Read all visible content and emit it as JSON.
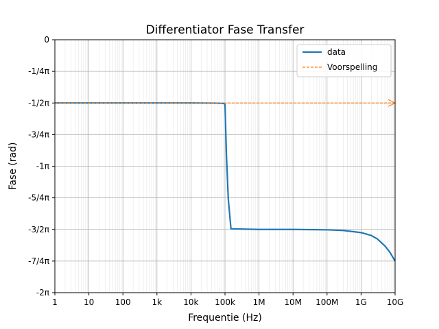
{
  "chart_data": {
    "type": "line",
    "title": "Differentiator Fase Transfer",
    "xlabel": "Frequentie (Hz)",
    "ylabel": "Fase (rad)",
    "x_scale": "log",
    "xlim": [
      1,
      10000000000
    ],
    "ylim_pi": [
      -2,
      0
    ],
    "grid": true,
    "legend_position": "top-right",
    "x_ticks": [
      {
        "value": 1,
        "label": "1"
      },
      {
        "value": 10,
        "label": "10"
      },
      {
        "value": 100,
        "label": "100"
      },
      {
        "value": 1000,
        "label": "1k"
      },
      {
        "value": 10000,
        "label": "10k"
      },
      {
        "value": 100000,
        "label": "100k"
      },
      {
        "value": 1000000,
        "label": "1M"
      },
      {
        "value": 10000000,
        "label": "10M"
      },
      {
        "value": 100000000,
        "label": "100M"
      },
      {
        "value": 1000000000,
        "label": "1G"
      },
      {
        "value": 10000000000,
        "label": "10G"
      }
    ],
    "y_ticks": [
      {
        "value_pi": 0,
        "label": "0"
      },
      {
        "value_pi": -0.25,
        "label": "-1/4π"
      },
      {
        "value_pi": -0.5,
        "label": "-1/2π"
      },
      {
        "value_pi": -0.75,
        "label": "-3/4π"
      },
      {
        "value_pi": -1,
        "label": "-1π"
      },
      {
        "value_pi": -1.25,
        "label": "-5/4π"
      },
      {
        "value_pi": -1.5,
        "label": "-3/2π"
      },
      {
        "value_pi": -1.75,
        "label": "-7/4π"
      },
      {
        "value_pi": -2,
        "label": "-2π"
      }
    ],
    "series": [
      {
        "name": "data",
        "color": "#1f77b4",
        "style": "solid",
        "x": [
          1,
          10,
          100,
          1000,
          10000,
          50000,
          90000,
          100000,
          110000,
          125000,
          150000,
          1000000,
          10000000,
          100000000,
          300000000,
          1000000000,
          2000000000,
          3000000000,
          5000000000,
          7000000000,
          10000000000
        ],
        "y_pi": [
          -0.5,
          -0.5,
          -0.5,
          -0.5,
          -0.5,
          -0.501,
          -0.503,
          -0.51,
          -0.9,
          -1.26,
          -1.495,
          -1.5,
          -1.5,
          -1.503,
          -1.508,
          -1.525,
          -1.548,
          -1.575,
          -1.63,
          -1.68,
          -1.75
        ]
      },
      {
        "name": "Voorspelling",
        "color": "#ff7f0e",
        "style": "dashed",
        "marker_end": "arrow",
        "x": [
          1,
          10000000000
        ],
        "y_pi": [
          -0.5,
          -0.5
        ]
      }
    ]
  }
}
